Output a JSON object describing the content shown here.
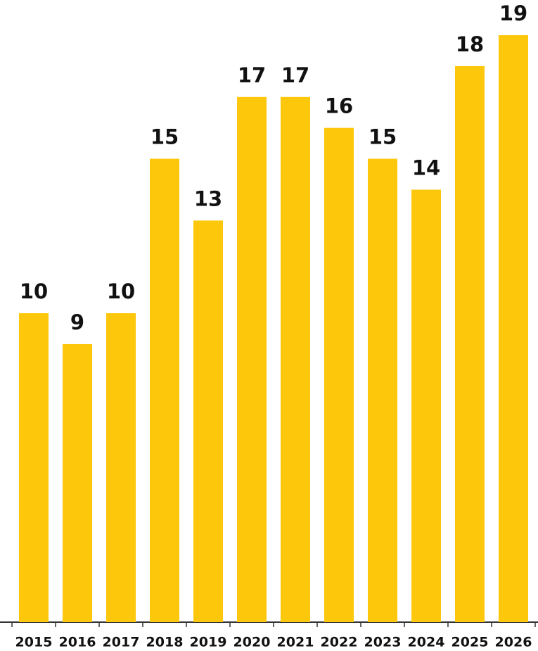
{
  "chart_data": {
    "type": "bar",
    "categories": [
      "2015",
      "2016",
      "2017",
      "2018",
      "2019",
      "2020",
      "2021",
      "2022",
      "2023",
      "2024",
      "2025",
      "2026"
    ],
    "values": [
      10,
      9,
      10,
      15,
      13,
      17,
      17,
      16,
      15,
      14,
      18,
      19
    ],
    "color": "#fdc70c",
    "ylim": [
      0,
      19
    ]
  }
}
